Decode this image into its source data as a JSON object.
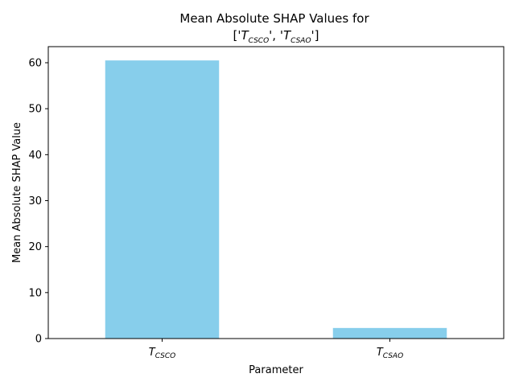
{
  "chart_data": {
    "type": "bar",
    "title_line1": "Mean Absolute SHAP Values for",
    "title_line2": {
      "open": "['",
      "first_main": "T",
      "first_sub": "CSCO",
      "middle": "', '",
      "second_main": "T",
      "second_sub": "CSAO",
      "close": "']"
    },
    "xlabel": "Parameter",
    "ylabel": "Mean Absolute SHAP Value",
    "categories": [
      {
        "main": "T",
        "sub": "CSCO"
      },
      {
        "main": "T",
        "sub": "CSAO"
      }
    ],
    "values": [
      60.5,
      2.3
    ],
    "ylim": [
      0,
      63.5
    ],
    "yticks": [
      0,
      10,
      20,
      30,
      40,
      50,
      60
    ],
    "bar_color": "#87CEEB",
    "grid": false,
    "legend": "none"
  }
}
